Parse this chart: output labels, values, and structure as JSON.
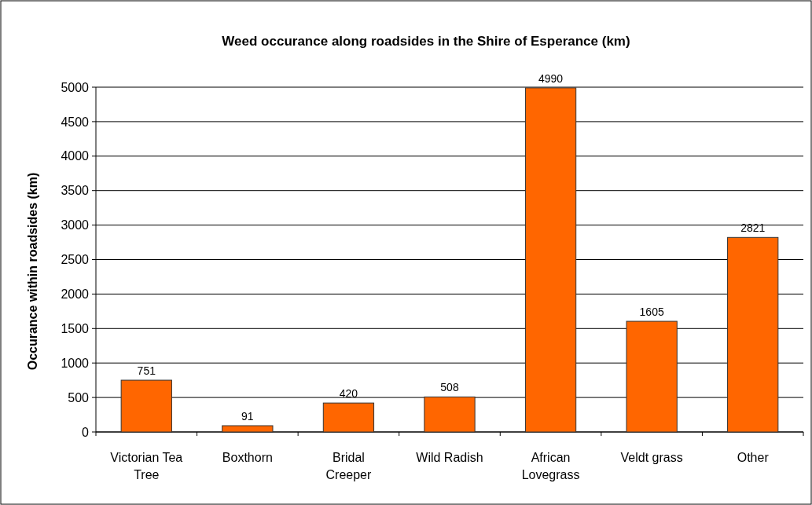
{
  "chart_data": {
    "type": "bar",
    "title": "Weed occurance along roadsides in the Shire of Esperance (km)",
    "ylabel": "Occurance within roadsides (km)",
    "categories": [
      "Victorian Tea Tree",
      "Boxthorn",
      "Bridal Creeper",
      "Wild Radish",
      "African Lovegrass",
      "Veldt grass",
      "Other"
    ],
    "values": [
      751,
      91,
      420,
      508,
      4990,
      1605,
      2821
    ],
    "color": "#ff6600",
    "ylim": [
      0,
      5000
    ],
    "yticks": [
      0,
      500,
      1000,
      1500,
      2000,
      2500,
      3000,
      3500,
      4000,
      4500,
      5000
    ],
    "grid": "y",
    "data_labels": true
  }
}
